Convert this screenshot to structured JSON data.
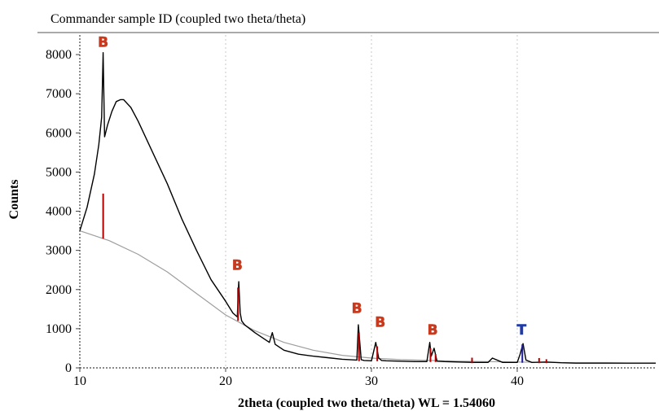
{
  "header": {
    "title": "Commander sample ID (coupled two theta/theta)"
  },
  "chart_data": {
    "type": "line",
    "title": "Commander sample ID (coupled two theta/theta)",
    "xlabel": "2theta (coupled two theta/theta) WL = 1.54060",
    "ylabel": "Counts",
    "xlim": [
      10,
      49.5
    ],
    "ylim": [
      0,
      8500
    ],
    "x_ticks": [
      "10",
      "20",
      "30",
      "40"
    ],
    "y_ticks": [
      "0",
      "1000",
      "2000",
      "3000",
      "4000",
      "5000",
      "6000",
      "7000",
      "8000"
    ],
    "series": [
      {
        "type": "pattern",
        "color": "#000000",
        "x": [
          10,
          10.5,
          11,
          11.3,
          11.5,
          11.6,
          11.7,
          11.9,
          12.2,
          12.5,
          12.8,
          13,
          13.5,
          14,
          15,
          16,
          17,
          18,
          19,
          20,
          20.5,
          20.8,
          20.9,
          21.0,
          21.1,
          21.3,
          22,
          23,
          23.2,
          23.4,
          24,
          25,
          26,
          27,
          28,
          29,
          29.1,
          29.2,
          29.3,
          29.5,
          30,
          30.3,
          30.5,
          30.7,
          31,
          32,
          33,
          33.8,
          34,
          34.1,
          34.3,
          34.5,
          35,
          36,
          37,
          38,
          38.3,
          39,
          40,
          40.2,
          40.4,
          40.6,
          41,
          42,
          43,
          44,
          45,
          46,
          47,
          48,
          49,
          49.5
        ],
        "y": [
          3500,
          4100,
          4950,
          5700,
          6400,
          8050,
          5900,
          6200,
          6550,
          6800,
          6850,
          6850,
          6650,
          6300,
          5500,
          4700,
          3800,
          3000,
          2250,
          1700,
          1400,
          1300,
          2200,
          1400,
          1200,
          1100,
          900,
          650,
          900,
          600,
          450,
          350,
          300,
          260,
          220,
          200,
          1100,
          650,
          210,
          190,
          180,
          650,
          250,
          190,
          180,
          170,
          160,
          160,
          650,
          300,
          500,
          170,
          160,
          150,
          140,
          140,
          250,
          140,
          140,
          350,
          620,
          200,
          140,
          150,
          130,
          120,
          120,
          120,
          120,
          120,
          120,
          120
        ]
      },
      {
        "type": "background",
        "color": "#9e9e9e",
        "x": [
          10,
          12,
          14,
          16,
          18,
          20,
          21,
          22,
          24,
          26,
          28,
          30,
          32,
          34,
          36,
          38,
          40,
          42,
          44,
          46,
          48,
          49.5
        ],
        "y": [
          3500,
          3250,
          2900,
          2450,
          1900,
          1350,
          1150,
          950,
          650,
          450,
          320,
          250,
          210,
          190,
          170,
          160,
          150,
          140,
          130,
          130,
          120,
          120
        ]
      }
    ],
    "reference_sticks": [
      {
        "x": 11.6,
        "y0": 3300,
        "y1": 4450,
        "color": "#b30000"
      },
      {
        "x": 20.85,
        "y0": 1200,
        "y1": 2050,
        "color": "#b30000"
      },
      {
        "x": 29.15,
        "y0": 170,
        "y1": 900,
        "color": "#b30000"
      },
      {
        "x": 30.4,
        "y0": 170,
        "y1": 550,
        "color": "#b30000"
      },
      {
        "x": 34.05,
        "y0": 150,
        "y1": 500,
        "color": "#b30000"
      },
      {
        "x": 34.4,
        "y0": 150,
        "y1": 350,
        "color": "#b30000"
      },
      {
        "x": 40.35,
        "y0": 130,
        "y1": 600,
        "color": "#1a1aa6"
      },
      {
        "x": 36.9,
        "y0": 120,
        "y1": 260,
        "color": "#b30000"
      },
      {
        "x": 41.5,
        "y0": 120,
        "y1": 250,
        "color": "#b30000"
      },
      {
        "x": 42,
        "y0": 120,
        "y1": 220,
        "color": "#b30000"
      }
    ],
    "peak_labels": [
      {
        "text": "B",
        "x": 11.6,
        "y": 8200,
        "color": "#c83a1e"
      },
      {
        "text": "B",
        "x": 20.8,
        "y": 2500,
        "color": "#c83a1e"
      },
      {
        "text": "B",
        "x": 29.0,
        "y": 1400,
        "color": "#c83a1e"
      },
      {
        "text": "B",
        "x": 30.6,
        "y": 1050,
        "color": "#c83a1e"
      },
      {
        "text": "B",
        "x": 34.2,
        "y": 850,
        "color": "#c83a1e"
      },
      {
        "text": "T",
        "x": 40.3,
        "y": 850,
        "color": "#1f3aa8"
      }
    ]
  }
}
